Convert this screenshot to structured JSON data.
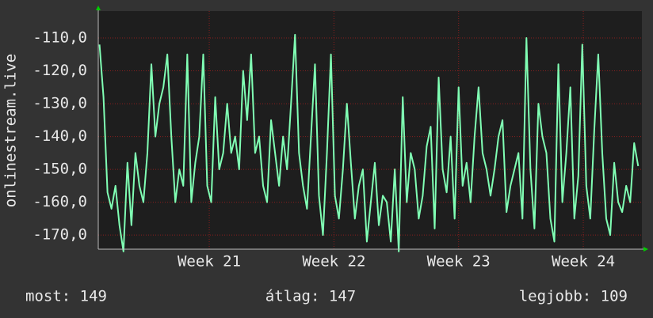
{
  "chart_data": {
    "type": "line",
    "y_label": "onlinestream.live",
    "x": [
      20.12,
      20.152,
      20.184,
      20.216,
      20.248,
      20.28,
      20.312,
      20.344,
      20.376,
      20.408,
      20.44,
      20.472,
      20.504,
      20.536,
      20.568,
      20.6,
      20.632,
      20.664,
      20.696,
      20.728,
      20.76,
      20.792,
      20.824,
      20.856,
      20.888,
      20.92,
      20.952,
      20.984,
      21.016,
      21.048,
      21.08,
      21.112,
      21.144,
      21.176,
      21.208,
      21.24,
      21.272,
      21.304,
      21.336,
      21.368,
      21.4,
      21.432,
      21.464,
      21.496,
      21.528,
      21.56,
      21.592,
      21.624,
      21.656,
      21.688,
      21.72,
      21.752,
      21.784,
      21.816,
      21.848,
      21.88,
      21.912,
      21.944,
      21.976,
      22.008,
      22.04,
      22.072,
      22.104,
      22.136,
      22.168,
      22.2,
      22.232,
      22.264,
      22.296,
      22.328,
      22.36,
      22.392,
      22.424,
      22.456,
      22.488,
      22.52,
      22.552,
      22.584,
      22.616,
      22.648,
      22.68,
      22.712,
      22.744,
      22.776,
      22.808,
      22.84,
      22.872,
      22.904,
      22.936,
      22.968,
      23.0,
      23.032,
      23.064,
      23.096,
      23.128,
      23.16,
      23.192,
      23.224,
      23.256,
      23.288,
      23.32,
      23.352,
      23.384,
      23.416,
      23.448,
      23.48,
      23.512,
      23.544,
      23.576,
      23.608,
      23.64,
      23.672,
      23.704,
      23.736,
      23.768,
      23.8,
      23.832,
      23.864,
      23.896,
      23.928,
      23.96,
      23.992,
      24.024,
      24.056,
      24.088,
      24.12,
      24.152,
      24.184,
      24.216,
      24.248,
      24.28,
      24.312,
      24.344,
      24.376,
      24.408,
      24.44
    ],
    "series": [
      {
        "color": "#80ffb4",
        "values": [
          -112,
          -128,
          -157,
          -162,
          -155,
          -167,
          -175,
          -148,
          -167,
          -145,
          -155,
          -160,
          -145,
          -118,
          -140,
          -130,
          -125,
          -115,
          -140,
          -160,
          -150,
          -155,
          -115,
          -160,
          -148,
          -140,
          -115,
          -155,
          -160,
          -128,
          -150,
          -145,
          -130,
          -145,
          -140,
          -150,
          -120,
          -135,
          -115,
          -145,
          -140,
          -155,
          -160,
          -135,
          -145,
          -155,
          -140,
          -150,
          -130,
          -109,
          -145,
          -155,
          -162,
          -140,
          -118,
          -158,
          -170,
          -145,
          -115,
          -158,
          -165,
          -150,
          -130,
          -148,
          -165,
          -155,
          -150,
          -172,
          -160,
          -148,
          -167,
          -158,
          -160,
          -172,
          -150,
          -175,
          -128,
          -160,
          -145,
          -150,
          -165,
          -158,
          -143,
          -137,
          -168,
          -122,
          -150,
          -157,
          -140,
          -165,
          -125,
          -155,
          -148,
          -160,
          -140,
          -125,
          -145,
          -150,
          -158,
          -150,
          -140,
          -135,
          -163,
          -155,
          -150,
          -145,
          -165,
          -110,
          -150,
          -168,
          -130,
          -140,
          -145,
          -165,
          -172,
          -118,
          -160,
          -145,
          -125,
          -165,
          -152,
          -112,
          -155,
          -165,
          -138,
          -115,
          -145,
          -165,
          -170,
          -148,
          -160,
          -163,
          -155,
          -160,
          -142,
          -149
        ]
      }
    ],
    "xlim": [
      20.11,
      24.47
    ],
    "xticks": [
      {
        "value": 21,
        "label": "Week 21"
      },
      {
        "value": 22,
        "label": "Week 22"
      },
      {
        "value": 23,
        "label": "Week 23"
      },
      {
        "value": 24,
        "label": "Week 24"
      }
    ],
    "ylim": [
      -174.3,
      -101.8
    ],
    "yticks": [
      {
        "value": -170,
        "label": "-170,0"
      },
      {
        "value": -160,
        "label": "-160,0"
      },
      {
        "value": -150,
        "label": "-150,0"
      },
      {
        "value": -140,
        "label": "-140,0"
      },
      {
        "value": -130,
        "label": "-130,0"
      },
      {
        "value": -120,
        "label": "-120,0"
      },
      {
        "value": -110,
        "label": "-110,0"
      }
    ],
    "grid": true,
    "footer": [
      "most: 149",
      "átlag: 147",
      "legjobb: 109"
    ]
  }
}
